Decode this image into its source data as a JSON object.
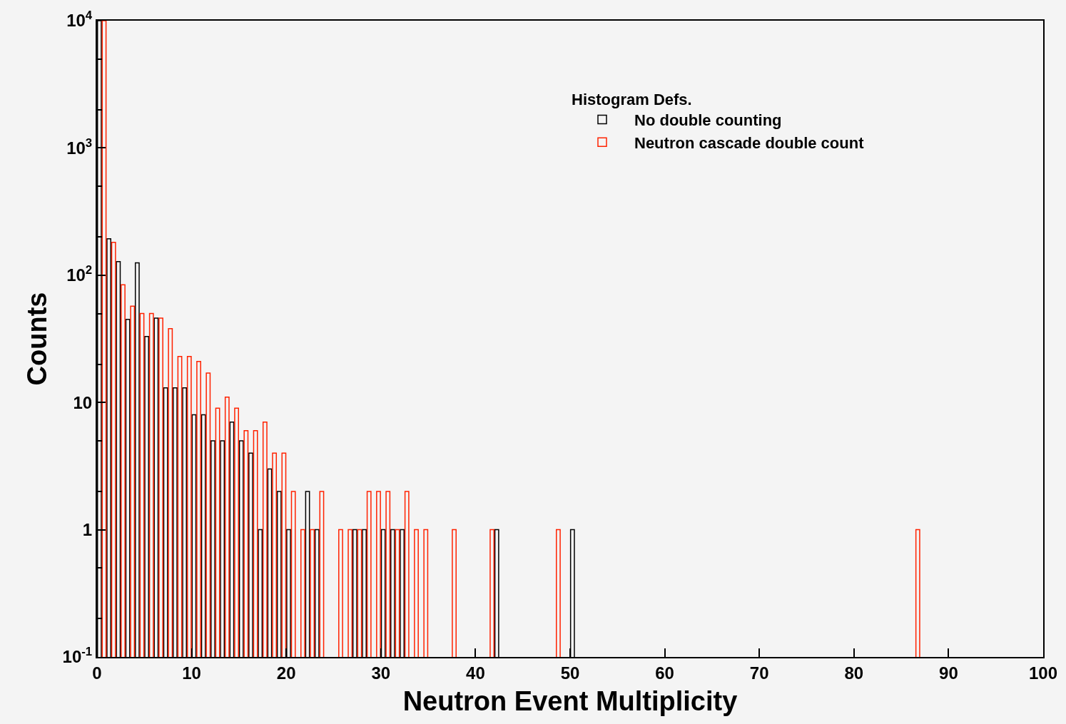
{
  "chart_data": {
    "type": "histogram",
    "xlabel": "Neutron Event Multiplicity",
    "ylabel": "Counts",
    "legend_title": "Histogram Defs.",
    "legend": "top right",
    "grid": false,
    "log": "y",
    "bins": [
      0,
      1,
      2,
      3,
      4,
      5,
      6,
      7,
      8,
      9,
      10,
      11,
      12,
      13,
      14,
      15,
      16,
      17,
      18,
      19,
      20,
      21,
      22,
      23,
      24,
      25,
      26,
      27,
      28,
      29,
      30,
      31,
      32,
      33,
      34,
      35,
      36,
      37,
      38,
      39,
      40,
      41,
      42,
      43,
      44,
      45,
      46,
      47,
      48,
      49,
      50,
      51,
      52,
      53,
      54,
      55,
      56,
      57,
      58,
      59,
      60,
      61,
      62,
      63,
      64,
      65,
      66,
      67,
      68,
      69,
      70,
      71,
      72,
      73,
      74,
      75,
      76,
      77,
      78,
      79,
      80,
      81,
      82,
      83,
      84,
      85,
      86,
      87,
      88,
      89,
      90,
      91,
      92,
      93,
      94,
      95,
      96,
      97,
      98,
      99,
      100
    ],
    "series": [
      {
        "name": "No double counting",
        "color": "#000000",
        "values": [
          10000,
          193,
          128,
          45,
          125,
          33,
          46,
          13,
          13,
          13,
          8,
          8,
          5,
          5,
          7,
          5,
          4,
          1,
          3,
          2,
          1,
          null,
          2,
          1,
          null,
          null,
          null,
          1,
          1,
          null,
          1,
          1,
          1,
          null,
          null,
          null,
          null,
          null,
          null,
          null,
          null,
          null,
          1,
          null,
          null,
          null,
          null,
          null,
          null,
          null,
          1,
          null,
          null,
          null,
          null,
          null,
          null,
          null,
          null,
          null,
          null,
          null,
          null,
          null,
          null,
          null,
          null,
          null,
          null,
          null,
          null,
          null,
          null,
          null,
          null,
          null,
          null,
          null,
          null,
          null,
          null,
          null,
          null,
          null,
          null,
          null,
          null,
          null,
          null,
          null,
          null,
          null,
          null,
          null,
          null,
          null,
          null,
          null,
          null,
          null
        ]
      },
      {
        "name": "Neutron cascade double count",
        "color": "#ff2200",
        "values": [
          10000,
          181,
          84,
          57,
          50,
          50,
          46,
          38,
          23,
          23,
          21,
          17,
          9,
          11,
          9,
          6,
          6,
          7,
          4,
          4,
          2,
          1,
          1,
          2,
          null,
          1,
          1,
          1,
          2,
          2,
          2,
          1,
          2,
          1,
          1,
          null,
          null,
          1,
          null,
          null,
          null,
          1,
          null,
          null,
          null,
          null,
          null,
          null,
          1,
          null,
          null,
          null,
          null,
          null,
          null,
          null,
          null,
          null,
          null,
          null,
          null,
          null,
          null,
          null,
          null,
          null,
          null,
          null,
          null,
          null,
          null,
          null,
          null,
          null,
          null,
          null,
          null,
          null,
          null,
          null,
          null,
          null,
          null,
          null,
          null,
          null,
          1,
          null,
          null,
          null,
          null,
          null,
          null,
          null,
          null,
          null,
          null,
          null,
          null,
          null
        ]
      }
    ],
    "xlim": [
      0,
      100
    ],
    "xticks": [
      0,
      10,
      20,
      30,
      40,
      50,
      60,
      70,
      80,
      90,
      100
    ],
    "ylim": [
      0.1,
      10000
    ],
    "yticks": [
      {
        "value": 0.1,
        "label": "10$^{-1}$"
      },
      1,
      10,
      {
        "value": 100,
        "label": "10$^{2}$"
      },
      {
        "value": 1000,
        "label": "10$^{3}$"
      },
      {
        "value": 10000,
        "label": "10$^{4}$"
      }
    ]
  }
}
